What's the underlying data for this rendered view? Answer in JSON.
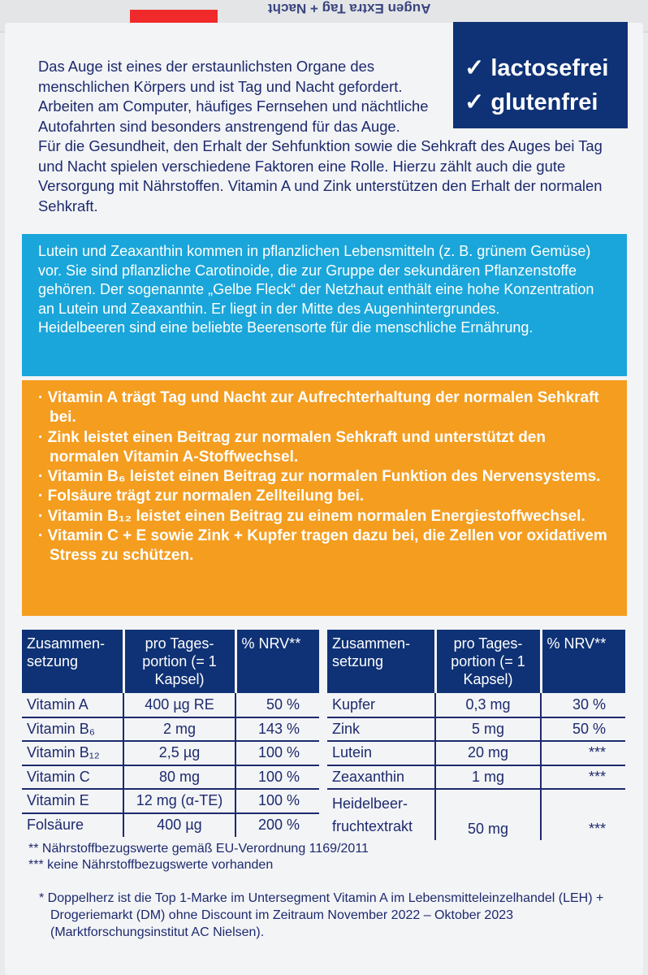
{
  "top_strip": {
    "mirrored_text": "Augen Extra Tag + Nacht"
  },
  "badge": {
    "items": [
      "lactosefrei",
      "glutenfrei"
    ],
    "check": "✓"
  },
  "intro": {
    "p1": "Das Auge ist eines der erstaunlichsten Organe des menschlichen Körpers und ist Tag und Nacht gefordert. Arbeiten am Computer, häufiges Fern­sehen und nächtliche Autofahrten sind besonders anstrengend für das Auge.",
    "p2": "Für die Gesundheit, den Erhalt der Sehfunktion sowie die Sehkraft des Auges bei Tag und Nacht spielen verschiedene Faktoren eine Rolle. Hier­zu zählt auch die gute Versorgung mit Nährstoffen. Vitamin A und Zink unterstützen den Erhalt der normalen Sehkraft."
  },
  "lutein": {
    "p1": "Lutein und Zeaxanthin kommen in pflanzlichen Lebensmitteln (z. B. grünem Gemüse) vor. Sie sind pflanzliche Carotinoide, die zur Gruppe der sekundären Pflanzenstoffe gehören. Der sogenannte „Gelbe Fleck“ der Netzhaut enthält eine hohe Konzentration an Lutein und Zeaxanthin. Er liegt in der Mitte des Augenhintergrundes.",
    "p2": "Heidelbeeren sind eine beliebte Beerensorte für die menschliche Ernährung."
  },
  "claims": [
    "Vitamin A trägt Tag und Nacht zur Aufrechterhaltung der normalen Sehkraft bei.",
    "Zink leistet einen Beitrag zur normalen Sehkraft und unterstützt den normalen Vitamin A-Stoffwechsel.",
    "Vitamin B₆ leistet einen Beitrag zur normalen Funktion des Nervensystems.",
    "Folsäure trägt zur normalen Zellteilung bei.",
    "Vitamin B₁₂ leistet einen Beitrag zu einem normalen Energie­stoffwechsel.",
    "Vitamin C + E sowie Zink + Kupfer tragen dazu bei, die Zellen vor oxidativem Stress zu schützen."
  ],
  "table_headers": [
    "Zusammen-setzung",
    "pro Tages-portion (= 1 Kapsel)",
    "% NRV**"
  ],
  "table_left": [
    [
      "Vitamin A",
      "400  µg RE",
      "50 %"
    ],
    [
      "Vitamin B₆",
      "2 mg",
      "143 %"
    ],
    [
      "Vitamin B₁₂",
      "2,5  µg",
      "100 %"
    ],
    [
      "Vitamin C",
      "80 mg",
      "100 %"
    ],
    [
      "Vitamin E",
      "12 mg (α-TE)",
      "100 %"
    ],
    [
      "Folsäure",
      "400  µg",
      "200 %"
    ]
  ],
  "table_right": [
    [
      "Kupfer",
      "0,3 mg",
      "30 %"
    ],
    [
      "Zink",
      "5 mg",
      "50 %"
    ],
    [
      "Lutein",
      "20 mg",
      "***"
    ],
    [
      "Zeaxanthin",
      "1 mg",
      "***"
    ],
    [
      "Heidelbeer-fruchtextrakt",
      "50 mg",
      "***"
    ]
  ],
  "notes": [
    "**  Nährstoffbezugswerte gemäß EU-Verordnung 1169/2011",
    "*** keine Nährstoffbezugswerte vorhanden"
  ],
  "star_note": "* Doppelherz ist die Top 1-Marke im Untersegment Vitamin A im Lebensmitteleinzel­handel (LEH) + Drogeriemarkt (DM) ohne Discount im Zeitraum November 2022 – Oktober 2023 (Marktforschungsinstitut AC Nielsen).",
  "colors": {
    "navy": "#0f3276",
    "cyan": "#1aa6da",
    "orange": "#f49d1f"
  }
}
